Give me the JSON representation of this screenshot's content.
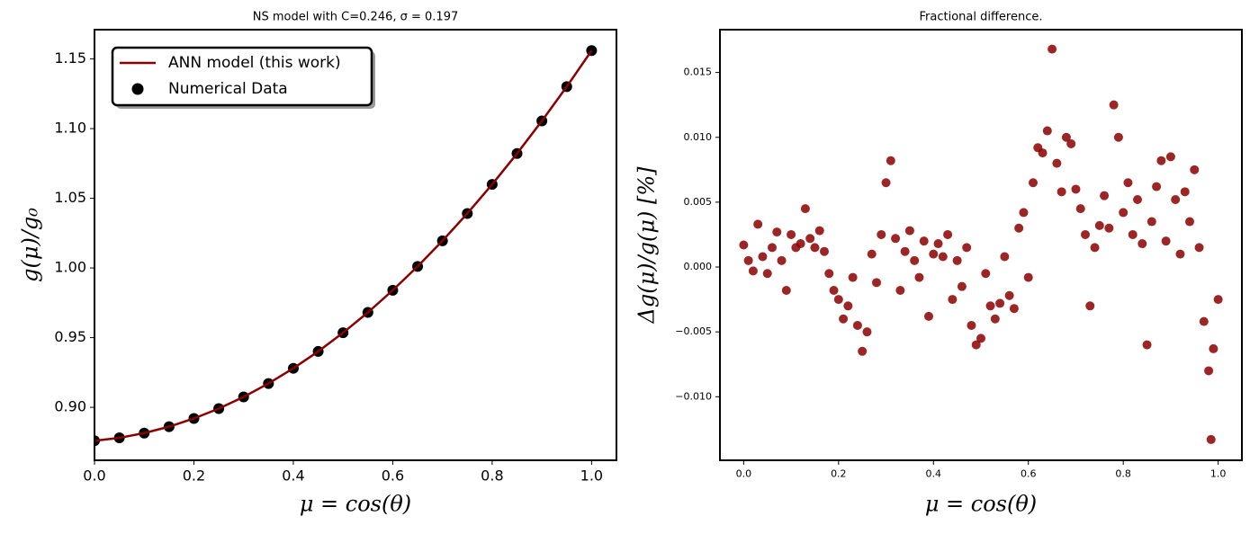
{
  "chart_data": [
    {
      "type": "line",
      "title": "NS model with C=0.246, σ = 0.197",
      "xlabel": "μ = cos(θ)",
      "ylabel": "g(μ)/g₀",
      "x": [
        0,
        0.05,
        0.1,
        0.15,
        0.2,
        0.25,
        0.3,
        0.35,
        0.4,
        0.45,
        0.5,
        0.55,
        0.6,
        0.65,
        0.7,
        0.75,
        0.8,
        0.85,
        0.9,
        0.95,
        1.0
      ],
      "series": [
        {
          "name": "Numerical Data",
          "type": "scatter",
          "color": "#000000",
          "values": [
            0.876,
            0.8781,
            0.8815,
            0.8861,
            0.892,
            0.8991,
            0.9075,
            0.9171,
            0.928,
            0.9401,
            0.9535,
            0.9681,
            0.984,
            1.0011,
            1.0195,
            1.0391,
            1.06,
            1.0821,
            1.1055,
            1.1301,
            1.156
          ]
        },
        {
          "name": "ANN model (this work)",
          "type": "line",
          "color": "#8b0000",
          "values": [
            0.876,
            0.8781,
            0.8815,
            0.8861,
            0.892,
            0.8991,
            0.9075,
            0.9171,
            0.928,
            0.9401,
            0.9535,
            0.9681,
            0.984,
            1.0011,
            1.0195,
            1.0391,
            1.06,
            1.0821,
            1.1055,
            1.1301,
            1.156
          ]
        }
      ],
      "xlim": [
        0,
        1.05
      ],
      "ylim": [
        0.862,
        1.171
      ],
      "xticks": [
        {
          "value": 0,
          "label": "0.0"
        },
        0.2,
        0.4,
        0.6,
        0.8,
        {
          "value": 1,
          "label": "1.0"
        }
      ],
      "yticks": [
        {
          "value": 0.9,
          "label": "0.90"
        },
        0.95,
        {
          "value": 1,
          "label": "1.00"
        },
        1.05,
        {
          "value": 1.1,
          "label": "1.10"
        },
        1.15
      ],
      "legend": "upper left"
    },
    {
      "type": "scatter",
      "title": "Fractional difference.",
      "xlabel": "μ = cos(θ)",
      "ylabel": "Δg(μ)/g(μ) [%]",
      "x": [
        0,
        0.01,
        0.02,
        0.03,
        0.04,
        0.05,
        0.06,
        0.07,
        0.08,
        0.09,
        0.1,
        0.11,
        0.12,
        0.13,
        0.14,
        0.15,
        0.16,
        0.17,
        0.18,
        0.19,
        0.2,
        0.21,
        0.22,
        0.23,
        0.24,
        0.25,
        0.26,
        0.27,
        0.28,
        0.29,
        0.3,
        0.31,
        0.32,
        0.33,
        0.34,
        0.35,
        0.36,
        0.37,
        0.38,
        0.39,
        0.4,
        0.41,
        0.42,
        0.43,
        0.44,
        0.45,
        0.46,
        0.47,
        0.48,
        0.49,
        0.5,
        0.51,
        0.52,
        0.53,
        0.54,
        0.55,
        0.56,
        0.57,
        0.58,
        0.59,
        0.6,
        0.61,
        0.62,
        0.63,
        0.64,
        0.65,
        0.66,
        0.67,
        0.68,
        0.69,
        0.7,
        0.71,
        0.72,
        0.73,
        0.74,
        0.75,
        0.76,
        0.77,
        0.78,
        0.79,
        0.8,
        0.81,
        0.82,
        0.83,
        0.84,
        0.85,
        0.86,
        0.87,
        0.88,
        0.89,
        0.9,
        0.91,
        0.92,
        0.93,
        0.94,
        0.95,
        0.96,
        0.97,
        0.98,
        0.985,
        0.99,
        1.0
      ],
      "series": [
        {
          "color": "#8b0000",
          "values": [
            0.0017,
            0.0005,
            -0.0003,
            0.0033,
            0.0008,
            -0.0005,
            0.0015,
            0.0027,
            0.0005,
            -0.0018,
            0.0025,
            0.0015,
            0.0018,
            0.0045,
            0.0022,
            0.0015,
            0.0028,
            0.0012,
            -0.0005,
            -0.0018,
            -0.0025,
            -0.004,
            -0.003,
            -0.0008,
            -0.0045,
            -0.0065,
            -0.005,
            0.001,
            -0.0012,
            0.0025,
            0.0065,
            0.0082,
            0.0022,
            -0.0018,
            0.0012,
            0.0028,
            0.0005,
            -0.0008,
            0.002,
            -0.0038,
            0.001,
            0.0018,
            0.0008,
            0.0025,
            -0.0025,
            0.0005,
            -0.0015,
            0.0015,
            -0.0045,
            -0.006,
            -0.0055,
            -0.0005,
            -0.003,
            -0.004,
            -0.0028,
            0.0008,
            -0.0022,
            -0.0032,
            0.003,
            0.0042,
            -0.0008,
            0.0065,
            0.0092,
            0.0088,
            0.0105,
            0.0168,
            0.008,
            0.0058,
            0.01,
            0.0095,
            0.006,
            0.0045,
            0.0025,
            -0.003,
            0.0015,
            0.0032,
            0.0055,
            0.003,
            0.0125,
            0.01,
            0.0042,
            0.0065,
            0.0025,
            0.0052,
            0.0018,
            -0.006,
            0.0035,
            0.0062,
            0.0082,
            0.002,
            0.0085,
            0.0052,
            0.001,
            0.0058,
            0.0035,
            0.0075,
            0.0015,
            -0.0042,
            -0.008,
            -0.0133,
            -0.0063,
            -0.0025
          ]
        }
      ],
      "xlim": [
        -0.05,
        1.05
      ],
      "ylim": [
        -0.0149,
        0.0183
      ],
      "xticks": [
        {
          "value": 0,
          "label": "0.0"
        },
        0.2,
        0.4,
        0.6,
        0.8,
        {
          "value": 1,
          "label": "1.0"
        }
      ],
      "yticks": [
        {
          "value": -0.01,
          "label": "−0.010"
        },
        {
          "value": -0.005,
          "label": "−0.005"
        },
        {
          "value": 0,
          "label": "0.000"
        },
        {
          "value": 0.005,
          "label": "0.005"
        },
        {
          "value": 0.01,
          "label": "0.010"
        },
        {
          "value": 0.015,
          "label": "0.015"
        }
      ]
    }
  ]
}
